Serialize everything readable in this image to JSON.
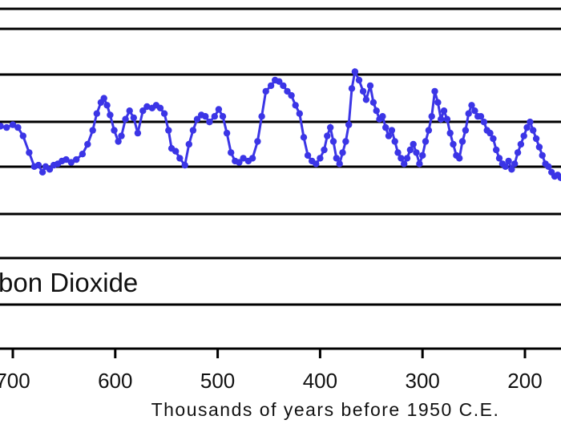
{
  "chart_data": {
    "type": "line",
    "panel_label": "bon Dioxide",
    "xlabel": "Thousands of years before 1950 C.E.",
    "x_ticks": [
      700,
      600,
      500,
      400,
      300,
      200
    ],
    "xlim": [
      719,
      165
    ],
    "ylim": [
      0,
      1
    ],
    "grid": true,
    "series_color": "#3b35e6",
    "series": [
      {
        "x": [
          719,
          712,
          706,
          700,
          695,
          690,
          684,
          679,
          675,
          671,
          668,
          664,
          660,
          656,
          652,
          648,
          643,
          638,
          632,
          627,
          622,
          618,
          614,
          611,
          608,
          605,
          601,
          597,
          594,
          590,
          586,
          582,
          578,
          573,
          569,
          564,
          560,
          556,
          552,
          548,
          545,
          541,
          537,
          532,
          528,
          524,
          520,
          516,
          512,
          508,
          503,
          499,
          495,
          491,
          487,
          483,
          479,
          475,
          470,
          466,
          461,
          457,
          453,
          448,
          444,
          440,
          436,
          432,
          428,
          424,
          420,
          416,
          412,
          408,
          404,
          400,
          396,
          393,
          390,
          387,
          384,
          381,
          378,
          375,
          372,
          369,
          366,
          362,
          358,
          355,
          351,
          348,
          345,
          342,
          339,
          336,
          333,
          330,
          327,
          324,
          321,
          318,
          315,
          312,
          309,
          306,
          303,
          300,
          297,
          294,
          291,
          288,
          285,
          282,
          279,
          276,
          273,
          270,
          267,
          264,
          261,
          258,
          255,
          252,
          249,
          246,
          243,
          240,
          237,
          234,
          231,
          228,
          225,
          222,
          219,
          216,
          213,
          210,
          207,
          204,
          201,
          198,
          195,
          192,
          189,
          186,
          183,
          180,
          177,
          174,
          171,
          168,
          165
        ],
        "values": [
          0.57,
          0.63,
          0.62,
          0.64,
          0.62,
          0.56,
          0.44,
          0.34,
          0.35,
          0.3,
          0.34,
          0.32,
          0.35,
          0.36,
          0.38,
          0.39,
          0.37,
          0.39,
          0.43,
          0.5,
          0.6,
          0.72,
          0.8,
          0.83,
          0.78,
          0.71,
          0.6,
          0.52,
          0.56,
          0.68,
          0.74,
          0.69,
          0.58,
          0.74,
          0.77,
          0.76,
          0.78,
          0.76,
          0.72,
          0.6,
          0.47,
          0.45,
          0.4,
          0.35,
          0.5,
          0.6,
          0.68,
          0.71,
          0.7,
          0.66,
          0.7,
          0.75,
          0.7,
          0.58,
          0.44,
          0.38,
          0.37,
          0.4,
          0.38,
          0.4,
          0.52,
          0.7,
          0.88,
          0.92,
          0.96,
          0.95,
          0.92,
          0.88,
          0.85,
          0.78,
          0.72,
          0.55,
          0.42,
          0.38,
          0.36,
          0.4,
          0.46,
          0.56,
          0.62,
          0.52,
          0.4,
          0.36,
          0.44,
          0.52,
          0.64,
          0.9,
          1.02,
          0.96,
          0.88,
          0.82,
          0.92,
          0.8,
          0.74,
          0.68,
          0.7,
          0.62,
          0.56,
          0.6,
          0.52,
          0.44,
          0.4,
          0.36,
          0.4,
          0.46,
          0.5,
          0.44,
          0.36,
          0.42,
          0.52,
          0.6,
          0.7,
          0.88,
          0.8,
          0.68,
          0.74,
          0.68,
          0.58,
          0.5,
          0.42,
          0.4,
          0.52,
          0.6,
          0.72,
          0.78,
          0.74,
          0.7,
          0.7,
          0.66,
          0.6,
          0.58,
          0.54,
          0.46,
          0.4,
          0.36,
          0.34,
          0.38,
          0.32,
          0.36,
          0.44,
          0.5,
          0.56,
          0.62,
          0.66,
          0.6,
          0.54,
          0.48,
          0.42,
          0.36,
          0.34,
          0.3,
          0.27,
          0.28,
          0.26
        ]
      }
    ]
  }
}
